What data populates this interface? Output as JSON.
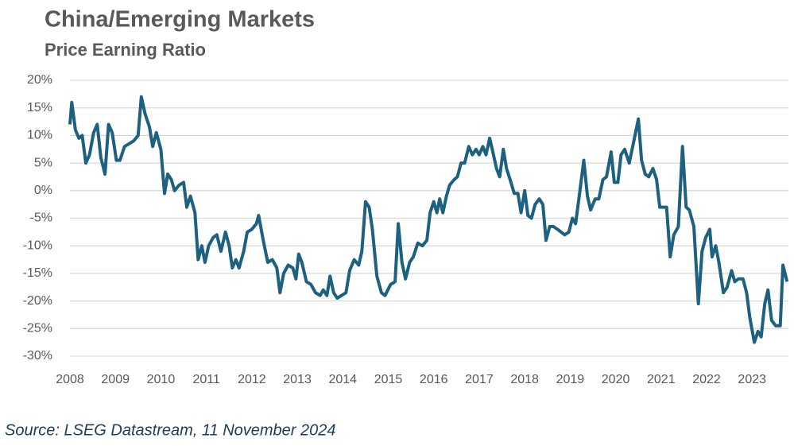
{
  "chart_data": {
    "type": "line",
    "title": "China/Emerging Markets",
    "subtitle": "Price Earning Ratio",
    "source": "Source: LSEG Datastream, 11 November 2024",
    "grid": true,
    "xlim": [
      2008,
      2023.8
    ],
    "xticks": [
      2008,
      2009,
      2010,
      2011,
      2012,
      2013,
      2014,
      2015,
      2016,
      2017,
      2018,
      2019,
      2020,
      2021,
      2022,
      2023
    ],
    "ylim": [
      -30,
      20
    ],
    "yticks": [
      {
        "value": -30,
        "label": "-30%"
      },
      {
        "value": -25,
        "label": "-25%"
      },
      {
        "value": -20,
        "label": "-20%"
      },
      {
        "value": -15,
        "label": "-15%"
      },
      {
        "value": -10,
        "label": "-10%"
      },
      {
        "value": -5,
        "label": "-5%"
      },
      {
        "value": 0,
        "label": "0%"
      },
      {
        "value": 5,
        "label": "5%"
      },
      {
        "value": 10,
        "label": "10%"
      },
      {
        "value": 15,
        "label": "15%"
      },
      {
        "value": 20,
        "label": "20%"
      }
    ],
    "x": [
      2008.0,
      2008.04,
      2008.12,
      2008.2,
      2008.27,
      2008.35,
      2008.43,
      2008.52,
      2008.6,
      2008.68,
      2008.77,
      2008.85,
      2008.93,
      2009.02,
      2009.1,
      2009.2,
      2009.3,
      2009.4,
      2009.5,
      2009.57,
      2009.65,
      2009.75,
      2009.82,
      2009.9,
      2010.0,
      2010.08,
      2010.15,
      2010.23,
      2010.3,
      2010.4,
      2010.5,
      2010.57,
      2010.65,
      2010.75,
      2010.82,
      2010.9,
      2010.97,
      2011.05,
      2011.15,
      2011.23,
      2011.32,
      2011.42,
      2011.5,
      2011.57,
      2011.65,
      2011.72,
      2011.82,
      2011.9,
      2012.0,
      2012.1,
      2012.15,
      2012.25,
      2012.35,
      2012.45,
      2012.55,
      2012.62,
      2012.7,
      2012.8,
      2012.9,
      2012.97,
      2013.03,
      2013.1,
      2013.2,
      2013.3,
      2013.4,
      2013.5,
      2013.57,
      2013.65,
      2013.72,
      2013.8,
      2013.88,
      2013.97,
      2014.07,
      2014.15,
      2014.25,
      2014.35,
      2014.42,
      2014.5,
      2014.58,
      2014.65,
      2014.75,
      2014.85,
      2014.93,
      2015.05,
      2015.15,
      2015.22,
      2015.3,
      2015.38,
      2015.47,
      2015.55,
      2015.65,
      2015.75,
      2015.85,
      2015.92,
      2016.0,
      2016.07,
      2016.13,
      2016.2,
      2016.28,
      2016.35,
      2016.45,
      2016.52,
      2016.6,
      2016.68,
      2016.77,
      2016.85,
      2016.93,
      2017.0,
      2017.08,
      2017.15,
      2017.23,
      2017.3,
      2017.38,
      2017.45,
      2017.53,
      2017.6,
      2017.68,
      2017.77,
      2017.85,
      2017.92,
      2018.0,
      2018.07,
      2018.15,
      2018.23,
      2018.32,
      2018.4,
      2018.47,
      2018.55,
      2018.63,
      2018.72,
      2018.8,
      2018.88,
      2018.97,
      2019.05,
      2019.12,
      2019.2,
      2019.3,
      2019.38,
      2019.45,
      2019.55,
      2019.63,
      2019.72,
      2019.8,
      2019.9,
      2019.97,
      2020.05,
      2020.12,
      2020.2,
      2020.3,
      2020.4,
      2020.5,
      2020.57,
      2020.65,
      2020.73,
      2020.82,
      2020.9,
      2020.97,
      2021.05,
      2021.12,
      2021.2,
      2021.28,
      2021.38,
      2021.47,
      2021.55,
      2021.62,
      2021.72,
      2021.82,
      2021.9,
      2021.98,
      2022.07,
      2022.12,
      2022.2,
      2022.27,
      2022.37,
      2022.45,
      2022.55,
      2022.62,
      2022.7,
      2022.8,
      2022.88,
      2022.95,
      2023.05,
      2023.13,
      2023.2,
      2023.28,
      2023.35,
      2023.43,
      2023.52,
      2023.62,
      2023.68,
      2023.77
    ],
    "series": [
      {
        "name": "China/Emerging Markets P/E",
        "color": "#1d6180",
        "values": [
          12,
          16,
          11,
          9.5,
          10,
          5,
          6.5,
          10.5,
          12,
          6,
          3,
          12,
          10.5,
          5.5,
          5.5,
          8,
          8.5,
          9,
          10,
          17,
          14,
          11.5,
          8,
          10.5,
          7.5,
          -0.5,
          3,
          2,
          0,
          1,
          1.5,
          -3,
          -1,
          -4,
          -12.5,
          -10,
          -13,
          -10,
          -8.5,
          -8,
          -11,
          -7.5,
          -10,
          -14,
          -12.5,
          -14,
          -11,
          -7.5,
          -7,
          -6,
          -4.5,
          -9,
          -13,
          -12.5,
          -14,
          -18.5,
          -15,
          -13.5,
          -14,
          -16,
          -11.5,
          -13,
          -16.5,
          -17,
          -18.5,
          -19,
          -18,
          -19,
          -15.5,
          -18.5,
          -19.5,
          -19,
          -18.5,
          -14.5,
          -12.5,
          -13.5,
          -11,
          -2,
          -3,
          -7,
          -15.5,
          -18.5,
          -19,
          -17,
          -16.5,
          -6,
          -13,
          -16,
          -13,
          -12,
          -9.5,
          -10,
          -9,
          -4,
          -2,
          -4,
          -1.5,
          -4,
          -1,
          1,
          2,
          2.5,
          5,
          5,
          8,
          6.5,
          7.5,
          6.5,
          8,
          6.5,
          9.5,
          7,
          4,
          2.5,
          7.5,
          4,
          2,
          -0.5,
          -0.5,
          -4,
          0,
          -4.5,
          -5,
          -2.5,
          -1.5,
          -2.5,
          -9,
          -6.5,
          -6.5,
          -7,
          -7.5,
          -8,
          -7.5,
          -5,
          -6,
          -1,
          5.5,
          -1,
          -3.5,
          -1.5,
          -1.5,
          2,
          2.5,
          7,
          1.5,
          1.5,
          6.5,
          7.5,
          5,
          9,
          13,
          5.5,
          3,
          2.5,
          4,
          2,
          -3,
          -3,
          -3,
          -12,
          -8,
          -6.5,
          8,
          -3,
          -3.5,
          -6.5,
          -20.5,
          -11,
          -8.5,
          -7,
          -12,
          -10,
          -13,
          -18.5,
          -17.5,
          -14.5,
          -16.5,
          -16,
          -16,
          -18.5,
          -23,
          -27.5,
          -25.5,
          -26.5,
          -20.5,
          -18,
          -23.5,
          -24.5,
          -24.5,
          -13.5,
          -16.5
        ]
      }
    ]
  }
}
